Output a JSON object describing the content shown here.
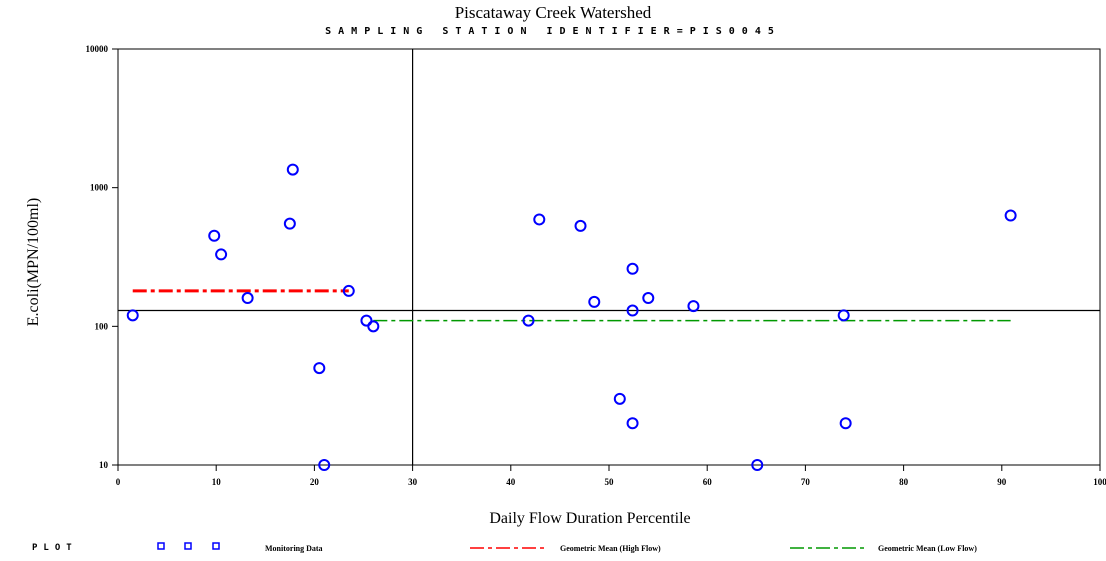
{
  "chart_data": {
    "type": "scatter",
    "title": "Piscataway Creek Watershed",
    "subtitle": "SAMPLING STATION IDENTIFIER=PIS0045",
    "xlabel": "Daily Flow Duration Percentile",
    "ylabel": "E.coli(MPN/100ml)",
    "xlim": [
      0,
      100
    ],
    "ylim": [
      10,
      10000
    ],
    "yscale": "log",
    "x_ticks": [
      "0",
      "10",
      "20",
      "30",
      "40",
      "50",
      "60",
      "70",
      "80",
      "90",
      "100"
    ],
    "y_ticks": [
      "10",
      "100",
      "1000",
      "10000"
    ],
    "grid": false,
    "reference_lines": {
      "vertical_x": 30,
      "horizontal_y": 130
    },
    "series": [
      {
        "name": "Monitoring Data",
        "color": "#0000ff",
        "marker": "circle",
        "points": [
          {
            "x": 1.5,
            "y": 120
          },
          {
            "x": 9.8,
            "y": 450
          },
          {
            "x": 10.5,
            "y": 330
          },
          {
            "x": 13.2,
            "y": 160
          },
          {
            "x": 17.5,
            "y": 550
          },
          {
            "x": 17.8,
            "y": 1350
          },
          {
            "x": 20.5,
            "y": 50
          },
          {
            "x": 21.0,
            "y": 10
          },
          {
            "x": 23.5,
            "y": 180
          },
          {
            "x": 25.3,
            "y": 110
          },
          {
            "x": 26.0,
            "y": 100
          },
          {
            "x": 41.8,
            "y": 110
          },
          {
            "x": 42.9,
            "y": 590
          },
          {
            "x": 47.1,
            "y": 530
          },
          {
            "x": 48.5,
            "y": 150
          },
          {
            "x": 51.1,
            "y": 30
          },
          {
            "x": 52.4,
            "y": 260
          },
          {
            "x": 52.4,
            "y": 130
          },
          {
            "x": 52.4,
            "y": 20
          },
          {
            "x": 54.0,
            "y": 160
          },
          {
            "x": 58.6,
            "y": 140
          },
          {
            "x": 65.1,
            "y": 10
          },
          {
            "x": 73.9,
            "y": 120
          },
          {
            "x": 74.1,
            "y": 20
          },
          {
            "x": 90.9,
            "y": 630
          }
        ]
      },
      {
        "name": "Geometric Mean (High Flow)",
        "color": "#ff0000",
        "line": {
          "x": [
            1.5,
            23.5
          ],
          "y": [
            180,
            180
          ]
        }
      },
      {
        "name": "Geometric Mean (Low Flow)",
        "color": "#009900",
        "line": {
          "x": [
            26.0,
            90.9
          ],
          "y": [
            110,
            110
          ]
        }
      }
    ],
    "legend": {
      "title": "PLOT",
      "placement": "bottom",
      "items": [
        "Monitoring Data",
        "Geometric Mean (High Flow)",
        "Geometric Mean (Low Flow)"
      ]
    }
  }
}
